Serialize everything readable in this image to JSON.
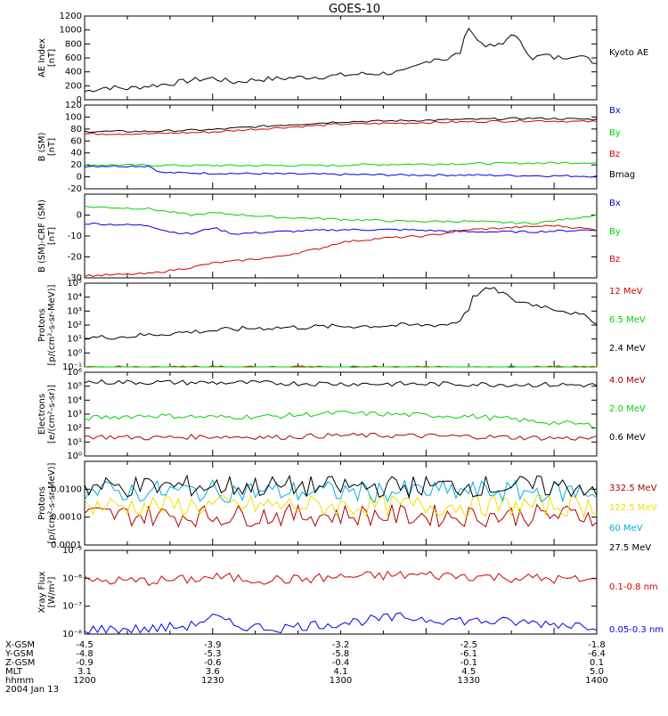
{
  "title": "GOES-10",
  "colors": {
    "black": "#000000",
    "red": "#d40000",
    "green": "#00d400",
    "blue": "#0000e6",
    "darkred": "#b00000",
    "yellow": "#f0e000",
    "cyan": "#00b0e0"
  },
  "chart_data": [
    {
      "type": "line",
      "panel": "ae",
      "ylabel": [
        "AE Index",
        "[nT]"
      ],
      "ylim": [
        0,
        1200
      ],
      "log": false,
      "yticks": [
        {
          "v": 0,
          "t": "0"
        },
        {
          "v": 200,
          "t": "200"
        },
        {
          "v": 400,
          "t": "400"
        },
        {
          "v": 600,
          "t": "600"
        },
        {
          "v": 800,
          "t": "800"
        },
        {
          "v": 1000,
          "t": "1000"
        },
        {
          "v": 1200,
          "t": "1200"
        }
      ],
      "series": [
        {
          "name": "Kyoto AE",
          "color": "black",
          "x": [
            1200,
            1205,
            1210,
            1215,
            1220,
            1225,
            1230,
            1235,
            1240,
            1245,
            1250,
            1255,
            1300,
            1305,
            1310,
            1315,
            1318,
            1322,
            1325,
            1328,
            1330,
            1332,
            1335,
            1338,
            1340,
            1343,
            1345,
            1348,
            1350,
            1353,
            1355,
            1358,
            1400
          ],
          "y": [
            120,
            180,
            160,
            200,
            230,
            280,
            310,
            250,
            290,
            300,
            320,
            330,
            350,
            370,
            380,
            400,
            480,
            600,
            580,
            680,
            1060,
            850,
            760,
            790,
            960,
            750,
            600,
            640,
            600,
            620,
            650,
            580,
            520
          ]
        }
      ]
    },
    {
      "type": "line",
      "panel": "bsm",
      "ylabel": [
        "B (SM)",
        "[nT]"
      ],
      "ylim": [
        -20,
        120
      ],
      "log": false,
      "yticks": [
        {
          "v": -20,
          "t": "-20"
        },
        {
          "v": 0,
          "t": "0"
        },
        {
          "v": 20,
          "t": "20"
        },
        {
          "v": 40,
          "t": "40"
        },
        {
          "v": 60,
          "t": "60"
        },
        {
          "v": 80,
          "t": "80"
        },
        {
          "v": 100,
          "t": "100"
        },
        {
          "v": 120,
          "t": "120"
        }
      ],
      "series": [
        {
          "name": "Bx",
          "color": "blue",
          "x": [
            1200,
            1215,
            1218,
            1230,
            1245,
            1300,
            1315,
            1330,
            1345,
            1400
          ],
          "y": [
            18,
            18,
            7,
            6,
            5,
            4,
            3,
            3,
            2,
            1
          ]
        },
        {
          "name": "By",
          "color": "green",
          "x": [
            1200,
            1230,
            1260,
            1300,
            1330,
            1400
          ],
          "y": [
            20,
            19,
            19,
            20,
            22,
            24
          ]
        },
        {
          "name": "Bz",
          "color": "red",
          "x": [
            1200,
            1215,
            1230,
            1245,
            1300,
            1315,
            1330,
            1345,
            1400
          ],
          "y": [
            72,
            72,
            75,
            82,
            88,
            90,
            92,
            94,
            92
          ]
        },
        {
          "name": "Bmag",
          "color": "black",
          "x": [
            1200,
            1215,
            1230,
            1245,
            1300,
            1315,
            1330,
            1345,
            1400
          ],
          "y": [
            76,
            76,
            79,
            86,
            92,
            94,
            96,
            98,
            96
          ]
        }
      ]
    },
    {
      "type": "line",
      "panel": "bcrf",
      "ylabel": [
        "B (SM)-CRF (SM)",
        "[nT]"
      ],
      "ylim": [
        -30,
        10
      ],
      "log": false,
      "yticks": [
        {
          "v": -30,
          "t": "-30"
        },
        {
          "v": -20,
          "t": "-20"
        },
        {
          "v": -10,
          "t": "-10"
        },
        {
          "v": 0,
          "t": "0"
        }
      ],
      "series": [
        {
          "name": "Bx",
          "color": "blue",
          "x": [
            1200,
            1215,
            1220,
            1225,
            1230,
            1235,
            1245,
            1300,
            1315,
            1330,
            1345,
            1400
          ],
          "y": [
            -4,
            -5,
            -8,
            -9,
            -6,
            -9,
            -8,
            -7,
            -7,
            -8,
            -8,
            -7
          ]
        },
        {
          "name": "By",
          "color": "green",
          "x": [
            1200,
            1215,
            1225,
            1230,
            1245,
            1300,
            1315,
            1330,
            1345,
            1400
          ],
          "y": [
            4,
            3,
            0,
            1,
            -1,
            -2,
            -3,
            -3,
            -4,
            0
          ]
        },
        {
          "name": "Bz",
          "color": "red",
          "x": [
            1200,
            1215,
            1225,
            1230,
            1245,
            1255,
            1300,
            1310,
            1320,
            1330,
            1340,
            1350,
            1400
          ],
          "y": [
            -29,
            -28,
            -25,
            -23,
            -20,
            -16,
            -13,
            -11,
            -10,
            -7,
            -6,
            -5,
            -7
          ]
        }
      ]
    },
    {
      "type": "line",
      "panel": "protons1",
      "ylabel": [
        "Protons",
        "[p/(cm²-s-sr-MeV)]"
      ],
      "ylim": [
        0.1,
        100000
      ],
      "log": true,
      "yticks": [
        {
          "v": 0.1,
          "t": "10⁻¹"
        },
        {
          "v": 1,
          "t": "10⁰"
        },
        {
          "v": 10,
          "t": "10¹"
        },
        {
          "v": 100,
          "t": "10²"
        },
        {
          "v": 1000,
          "t": "10³"
        },
        {
          "v": 10000,
          "t": "10⁴"
        },
        {
          "v": 100000,
          "t": "10⁵"
        }
      ],
      "series": [
        {
          "name": "12 MeV",
          "color": "red",
          "x": [
            1200,
            1400
          ],
          "y": [
            0.08,
            0.08
          ]
        },
        {
          "name": "6.5 MeV",
          "color": "green",
          "x": [
            1200,
            1400
          ],
          "y": [
            0.08,
            0.08
          ]
        },
        {
          "name": "2.4 MeV",
          "color": "black",
          "x": [
            1200,
            1210,
            1220,
            1230,
            1240,
            1250,
            1300,
            1310,
            1320,
            1325,
            1328,
            1330,
            1335,
            1340,
            1345,
            1350,
            1355,
            1400
          ],
          "y": [
            12,
            15,
            25,
            40,
            60,
            70,
            80,
            90,
            100,
            110,
            200,
            1500,
            40000,
            6000,
            3000,
            1500,
            600,
            150
          ]
        }
      ]
    },
    {
      "type": "line",
      "panel": "electrons",
      "ylabel": [
        "Electrons",
        "[e/(cm²-s-sr)]"
      ],
      "ylim": [
        1,
        1000000
      ],
      "log": true,
      "yticks": [
        {
          "v": 1,
          "t": "10⁰"
        },
        {
          "v": 10,
          "t": "10¹"
        },
        {
          "v": 100,
          "t": "10²"
        },
        {
          "v": 1000,
          "t": "10³"
        },
        {
          "v": 10000,
          "t": "10⁴"
        },
        {
          "v": 100000,
          "t": "10⁵"
        },
        {
          "v": 1000000,
          "t": "10⁶"
        }
      ],
      "series": [
        {
          "name": "4.0 MeV",
          "color": "darkred",
          "x": [
            1200,
            1215,
            1230,
            1245,
            1300,
            1315,
            1330,
            1345,
            1400
          ],
          "y": [
            25,
            20,
            25,
            22,
            30,
            28,
            25,
            20,
            18
          ]
        },
        {
          "name": "2.0 MeV",
          "color": "green",
          "x": [
            1200,
            1215,
            1230,
            1245,
            1300,
            1315,
            1330,
            1345,
            1400
          ],
          "y": [
            500,
            800,
            600,
            700,
            1200,
            900,
            700,
            300,
            150
          ]
        },
        {
          "name": "0.6 MeV",
          "color": "black",
          "x": [
            1200,
            1230,
            1300,
            1330,
            1400
          ],
          "y": [
            200000,
            180000,
            150000,
            140000,
            120000
          ]
        }
      ]
    },
    {
      "type": "line",
      "panel": "protons2",
      "ylabel": [
        "Protons",
        "[p/(cm²-s-sr-MeV)]"
      ],
      "ylim": [
        0.0001,
        0.1
      ],
      "log": true,
      "yticks": [
        {
          "v": 0.0001,
          "t": "0.0001"
        },
        {
          "v": 0.001,
          "t": "0.0010"
        },
        {
          "v": 0.01,
          "t": "0.0100"
        }
      ],
      "series": [
        {
          "name": "332.5 MeV",
          "color": "darkred",
          "x": [
            1200,
            1230,
            1300,
            1330,
            1400
          ],
          "y": [
            0.0012,
            0.0011,
            0.0012,
            0.0011,
            0.0012
          ]
        },
        {
          "name": "122.5 MeV",
          "color": "yellow",
          "x": [
            1200,
            1230,
            1300,
            1330,
            1400
          ],
          "y": [
            0.0025,
            0.0026,
            0.0025,
            0.0026,
            0.0025
          ]
        },
        {
          "name": "60 MeV",
          "color": "cyan",
          "x": [
            1200,
            1230,
            1300,
            1330,
            1400
          ],
          "y": [
            0.008,
            0.0085,
            0.008,
            0.0085,
            0.008
          ]
        },
        {
          "name": "27.5 MeV",
          "color": "black",
          "x": [
            1200,
            1230,
            1300,
            1330,
            1400
          ],
          "y": [
            0.012,
            0.013,
            0.012,
            0.013,
            0.012
          ]
        }
      ]
    },
    {
      "type": "line",
      "panel": "xray",
      "ylabel": [
        "Xray Flux",
        "[W/m²]"
      ],
      "ylim": [
        1e-08,
        1e-05
      ],
      "log": true,
      "yticks": [
        {
          "v": 1e-08,
          "t": "10⁻⁸"
        },
        {
          "v": 1e-07,
          "t": "10⁻⁷"
        },
        {
          "v": 1e-06,
          "t": "10⁻⁶"
        },
        {
          "v": 1e-05,
          "t": "10⁻⁵"
        }
      ],
      "series": [
        {
          "name": "0.1-0.8 nm",
          "color": "red",
          "x": [
            1200,
            1215,
            1225,
            1230,
            1240,
            1250,
            1300,
            1315,
            1320,
            1330,
            1345,
            1400
          ],
          "y": [
            8e-07,
            8e-07,
            9e-07,
            1.1e-06,
            9e-07,
            9e-07,
            1.1e-06,
            1.3e-06,
            1.3e-06,
            1.2e-06,
            1e-06,
            8e-07
          ]
        },
        {
          "name": "0.05-0.3 nm",
          "color": "blue",
          "x": [
            1200,
            1215,
            1225,
            1230,
            1235,
            1245,
            1300,
            1315,
            1320,
            1330,
            1345,
            1400
          ],
          "y": [
            1.5e-08,
            1.5e-08,
            2e-08,
            4e-08,
            2e-08,
            1.6e-08,
            2.5e-08,
            4e-08,
            3.5e-08,
            3e-08,
            2.5e-08,
            2e-08
          ]
        }
      ]
    }
  ],
  "xaxis": {
    "hhmm": [
      1200,
      1230,
      1300,
      1330,
      1400
    ],
    "row_labels": [
      "X-GSM",
      "Y-GSM",
      "Z-GSM",
      "MLT",
      "hhmm"
    ],
    "rows": [
      [
        "-4.5",
        "-3.9",
        "-3.2",
        "-2.5",
        "-1.8"
      ],
      [
        "-4.8",
        "-5.3",
        "-5.8",
        "-6.1",
        "-6.4"
      ],
      [
        "-0.9",
        "-0.6",
        "-0.4",
        "-0.1",
        "0.1"
      ],
      [
        "3.1",
        "3.6",
        "4.1",
        "4.5",
        "5.0"
      ],
      [
        "1200",
        "1230",
        "1300",
        "1330",
        "1400"
      ]
    ],
    "date": "2004 Jan 13"
  }
}
